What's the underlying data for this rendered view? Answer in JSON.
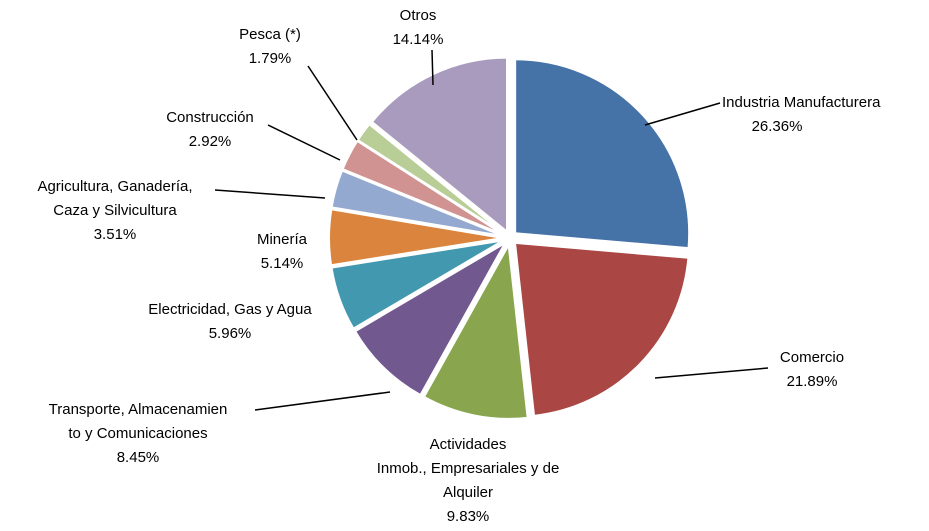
{
  "chart_data": {
    "type": "pie",
    "categories": [
      "Industria Manufacturera",
      "Comercio",
      "Actividades\nInmob., Empresariales y de\nAlquiler",
      "Transporte, Almacenamien\nto y Comunicaciones",
      "Electricidad, Gas y Agua",
      "Minería",
      "Agricultura, Ganadería,\nCaza y Silvicultura",
      "Construcción",
      "Pesca (*)",
      "Otros"
    ],
    "values": [
      26.36,
      21.89,
      9.83,
      8.45,
      5.96,
      5.14,
      3.51,
      2.92,
      1.79,
      14.14
    ],
    "value_labels": [
      "26.36%",
      "21.89%",
      "9.83%",
      "8.45%",
      "5.96%",
      "5.14%",
      "3.51%",
      "2.92%",
      "1.79%",
      "14.14%"
    ],
    "colors": [
      "#4572a7",
      "#aa4643",
      "#89a54e",
      "#71588f",
      "#4198af",
      "#db843d",
      "#93a9cf",
      "#d19392",
      "#b9cd96",
      "#a99bbd"
    ]
  }
}
